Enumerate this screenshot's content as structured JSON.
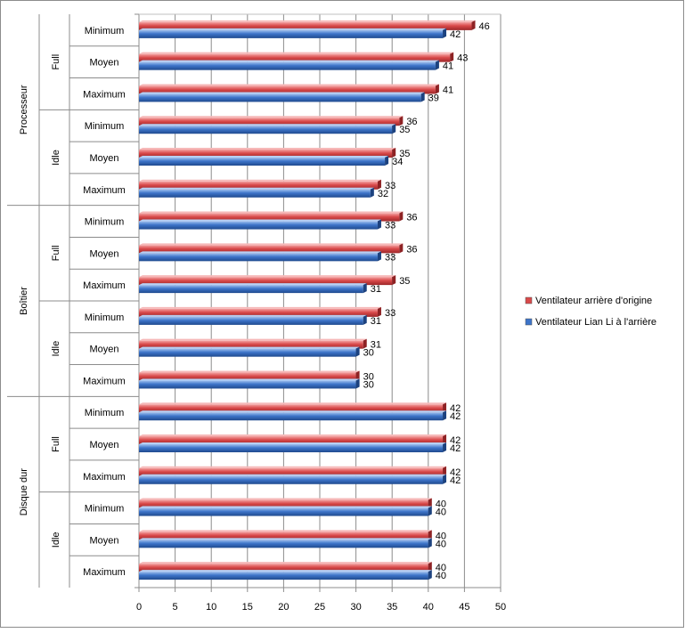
{
  "chart_data": {
    "type": "bar",
    "orientation": "horizontal",
    "xlim": [
      0,
      50
    ],
    "x_ticks": [
      "0",
      "5",
      "10",
      "15",
      "20",
      "25",
      "30",
      "35",
      "40",
      "45",
      "50"
    ],
    "grid": "vertical major gridlines",
    "legend_position": "right",
    "colors": {
      "series_1": "#d9494a",
      "series_2": "#3d74c9"
    },
    "groups": [
      {
        "label": "Processeur",
        "subgroups": [
          {
            "label": "Full",
            "categories": [
              "Minimum",
              "Moyen",
              "Maximum"
            ]
          },
          {
            "label": "Idle",
            "categories": [
              "Minimum",
              "Moyen",
              "Maximum"
            ]
          }
        ]
      },
      {
        "label": "Boîtier",
        "subgroups": [
          {
            "label": "Full",
            "categories": [
              "Minimum",
              "Moyen",
              "Maximum"
            ]
          },
          {
            "label": "Idle",
            "categories": [
              "Minimum",
              "Moyen",
              "Maximum"
            ]
          }
        ]
      },
      {
        "label": "Disque dur",
        "subgroups": [
          {
            "label": "Full",
            "categories": [
              "Minimum",
              "Moyen",
              "Maximum"
            ]
          },
          {
            "label": "Idle",
            "categories": [
              "Minimum",
              "Moyen",
              "Maximum"
            ]
          }
        ]
      }
    ],
    "series": [
      {
        "name": "Ventilateur arrière d'origine",
        "values": [
          46,
          43,
          41,
          36,
          35,
          33,
          36,
          36,
          35,
          33,
          31,
          30,
          42,
          42,
          42,
          40,
          40,
          40
        ]
      },
      {
        "name": "Ventilateur Lian Li à l'arrière",
        "values": [
          42,
          41,
          39,
          35,
          34,
          32,
          33,
          33,
          31,
          31,
          30,
          30,
          42,
          42,
          42,
          40,
          40,
          40
        ]
      }
    ]
  }
}
